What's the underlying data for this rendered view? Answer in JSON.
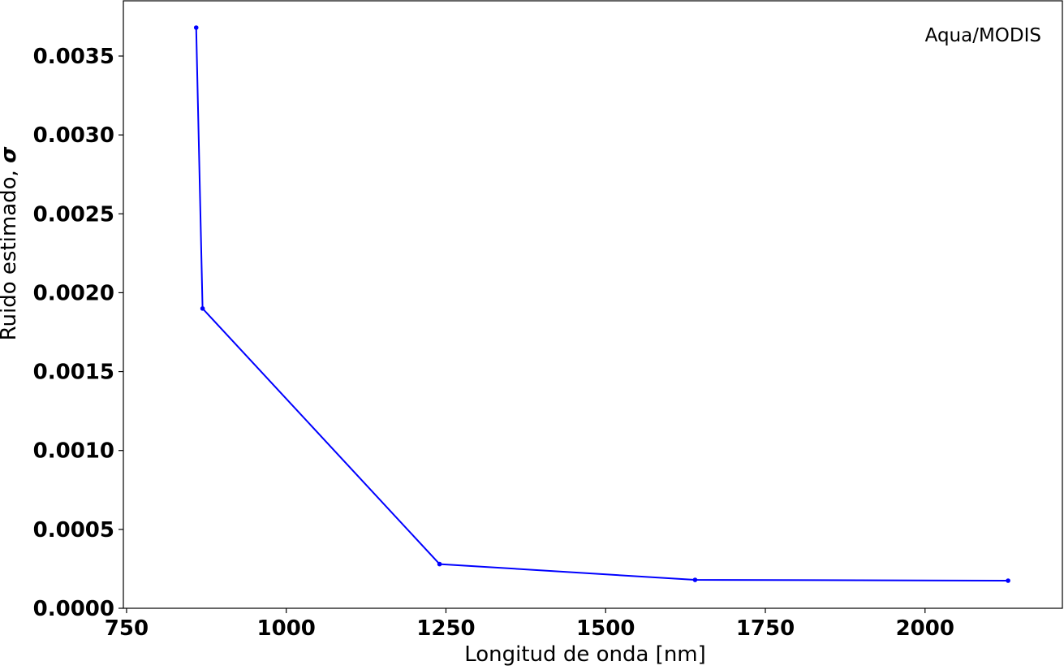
{
  "chart_data": {
    "type": "line",
    "title": "",
    "annotation": "Aqua/MODIS",
    "xlabel": "Longitud de onda [nm]",
    "ylabel_text": "Ruido estimado, ",
    "ylabel_symbol": "σ",
    "xlim": [
      745,
      2215
    ],
    "ylim": [
      0.0,
      0.00385
    ],
    "x_ticks": [
      750,
      1000,
      1250,
      1500,
      1750,
      2000
    ],
    "x_tick_labels": [
      "750",
      "1000",
      "1250",
      "1500",
      "1750",
      "2000"
    ],
    "y_ticks": [
      0.0,
      0.0005,
      0.001,
      0.0015,
      0.002,
      0.0025,
      0.003,
      0.0035
    ],
    "y_tick_labels": [
      "0.0000",
      "0.0005",
      "0.0010",
      "0.0015",
      "0.0020",
      "0.0025",
      "0.0030",
      "0.0035"
    ],
    "grid": false,
    "series": [
      {
        "color": "#0000ff",
        "marker": "circle",
        "x": [
          859,
          869,
          1240,
          1640,
          2130
        ],
        "y": [
          0.00368,
          0.0019,
          0.00028,
          0.00018,
          0.000175
        ]
      }
    ]
  }
}
